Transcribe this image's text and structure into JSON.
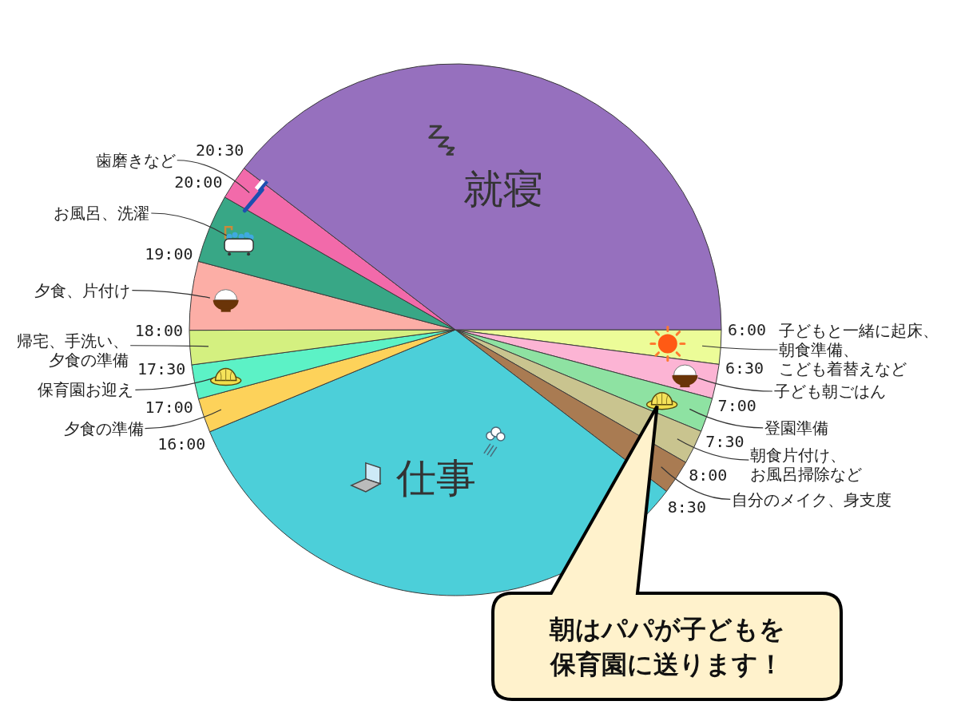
{
  "chart_data": {
    "type": "pie",
    "categories": [
      "子どもと一緒に起床、朝食準備、こども着替えなど",
      "子ども朝ごはん",
      "登園準備",
      "朝食片付け、お風呂掃除など",
      "自分のメイク、身支度",
      "仕事",
      "夕食の準備",
      "保育園お迎え",
      "帰宅、手洗い、夕食の準備",
      "夕食、片付け",
      "お風呂、洗濯",
      "歯磨きなど",
      "就寝"
    ],
    "values": [
      2.08,
      2.08,
      2.08,
      2.08,
      2.08,
      33.33,
      2.08,
      2.08,
      2.08,
      4.17,
      4.17,
      2.08,
      39.61
    ],
    "colors": [
      "#ecfc98",
      "#fcb4d4",
      "#8ee2a2",
      "#c9c48f",
      "#a97b52",
      "#4ccfd9",
      "#fdd25a",
      "#5cf2c6",
      "#d4f080",
      "#fcaea6",
      "#38a786",
      "#f26aaa",
      "#9670be"
    ],
    "annotations": [
      "6:00",
      "6:30",
      "7:00",
      "7:30",
      "8:00",
      "8:30",
      "16:00",
      "17:00",
      "17:30",
      "18:00",
      "19:00",
      "20:00",
      "20:30",
      "朝はパパが子どもを保育園に送ります！"
    ]
  }
}
